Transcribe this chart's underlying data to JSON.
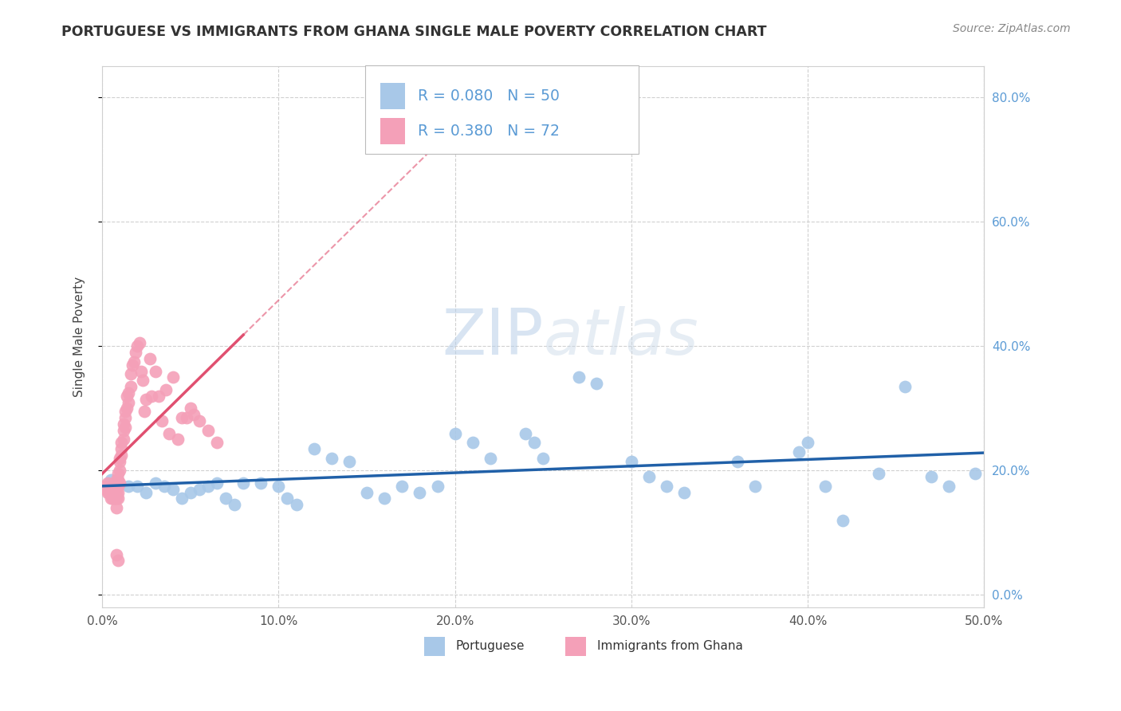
{
  "title": "PORTUGUESE VS IMMIGRANTS FROM GHANA SINGLE MALE POVERTY CORRELATION CHART",
  "source": "Source: ZipAtlas.com",
  "ylabel": "Single Male Poverty",
  "xlim": [
    0.0,
    0.5
  ],
  "ylim": [
    -0.02,
    0.85
  ],
  "xticks": [
    0.0,
    0.1,
    0.2,
    0.3,
    0.4,
    0.5
  ],
  "xticklabels": [
    "0.0%",
    "10.0%",
    "20.0%",
    "30.0%",
    "40.0%",
    "50.0%"
  ],
  "yticks_right": [
    0.0,
    0.2,
    0.4,
    0.6,
    0.8
  ],
  "ytick_right_labels": [
    "0.0%",
    "20.0%",
    "40.0%",
    "60.0%",
    "80.0%"
  ],
  "blue_color": "#a8c8e8",
  "pink_color": "#f4a0b8",
  "blue_line_color": "#2060a8",
  "pink_line_color": "#e05070",
  "R_blue": 0.08,
  "N_blue": 50,
  "R_pink": 0.38,
  "N_pink": 72,
  "legend_label_blue": "Portuguese",
  "legend_label_pink": "Immigrants from Ghana",
  "watermark_zip": "ZIP",
  "watermark_atlas": "atlas",
  "blue_scatter_x": [
    0.005,
    0.015,
    0.02,
    0.025,
    0.03,
    0.035,
    0.04,
    0.045,
    0.05,
    0.055,
    0.06,
    0.065,
    0.07,
    0.075,
    0.08,
    0.09,
    0.1,
    0.105,
    0.11,
    0.12,
    0.13,
    0.14,
    0.15,
    0.16,
    0.17,
    0.18,
    0.19,
    0.2,
    0.21,
    0.22,
    0.24,
    0.245,
    0.25,
    0.27,
    0.28,
    0.3,
    0.31,
    0.32,
    0.33,
    0.36,
    0.37,
    0.395,
    0.4,
    0.41,
    0.42,
    0.44,
    0.455,
    0.47,
    0.48,
    0.495
  ],
  "blue_scatter_y": [
    0.185,
    0.175,
    0.175,
    0.165,
    0.18,
    0.175,
    0.17,
    0.155,
    0.165,
    0.17,
    0.175,
    0.18,
    0.155,
    0.145,
    0.18,
    0.18,
    0.175,
    0.155,
    0.145,
    0.235,
    0.22,
    0.215,
    0.165,
    0.155,
    0.175,
    0.165,
    0.175,
    0.26,
    0.245,
    0.22,
    0.26,
    0.245,
    0.22,
    0.35,
    0.34,
    0.215,
    0.19,
    0.175,
    0.165,
    0.215,
    0.175,
    0.23,
    0.245,
    0.175,
    0.12,
    0.195,
    0.335,
    0.19,
    0.175,
    0.195
  ],
  "pink_scatter_x": [
    0.001,
    0.002,
    0.003,
    0.003,
    0.004,
    0.004,
    0.005,
    0.005,
    0.005,
    0.006,
    0.006,
    0.006,
    0.007,
    0.007,
    0.007,
    0.007,
    0.008,
    0.008,
    0.008,
    0.008,
    0.008,
    0.009,
    0.009,
    0.009,
    0.009,
    0.009,
    0.01,
    0.01,
    0.01,
    0.01,
    0.011,
    0.011,
    0.011,
    0.012,
    0.012,
    0.012,
    0.013,
    0.013,
    0.013,
    0.014,
    0.014,
    0.015,
    0.015,
    0.016,
    0.016,
    0.017,
    0.018,
    0.019,
    0.02,
    0.021,
    0.022,
    0.023,
    0.024,
    0.025,
    0.027,
    0.028,
    0.03,
    0.032,
    0.034,
    0.036,
    0.038,
    0.04,
    0.043,
    0.045,
    0.048,
    0.05,
    0.052,
    0.055,
    0.06,
    0.065,
    0.008,
    0.009
  ],
  "pink_scatter_y": [
    0.175,
    0.17,
    0.165,
    0.18,
    0.17,
    0.165,
    0.155,
    0.165,
    0.175,
    0.155,
    0.17,
    0.165,
    0.155,
    0.165,
    0.175,
    0.155,
    0.14,
    0.155,
    0.165,
    0.175,
    0.185,
    0.155,
    0.165,
    0.175,
    0.185,
    0.195,
    0.18,
    0.2,
    0.22,
    0.215,
    0.225,
    0.235,
    0.245,
    0.25,
    0.265,
    0.275,
    0.27,
    0.285,
    0.295,
    0.3,
    0.32,
    0.31,
    0.325,
    0.335,
    0.355,
    0.37,
    0.375,
    0.39,
    0.4,
    0.405,
    0.36,
    0.345,
    0.295,
    0.315,
    0.38,
    0.32,
    0.36,
    0.32,
    0.28,
    0.33,
    0.26,
    0.35,
    0.25,
    0.285,
    0.285,
    0.3,
    0.29,
    0.28,
    0.265,
    0.245,
    0.065,
    0.055
  ]
}
